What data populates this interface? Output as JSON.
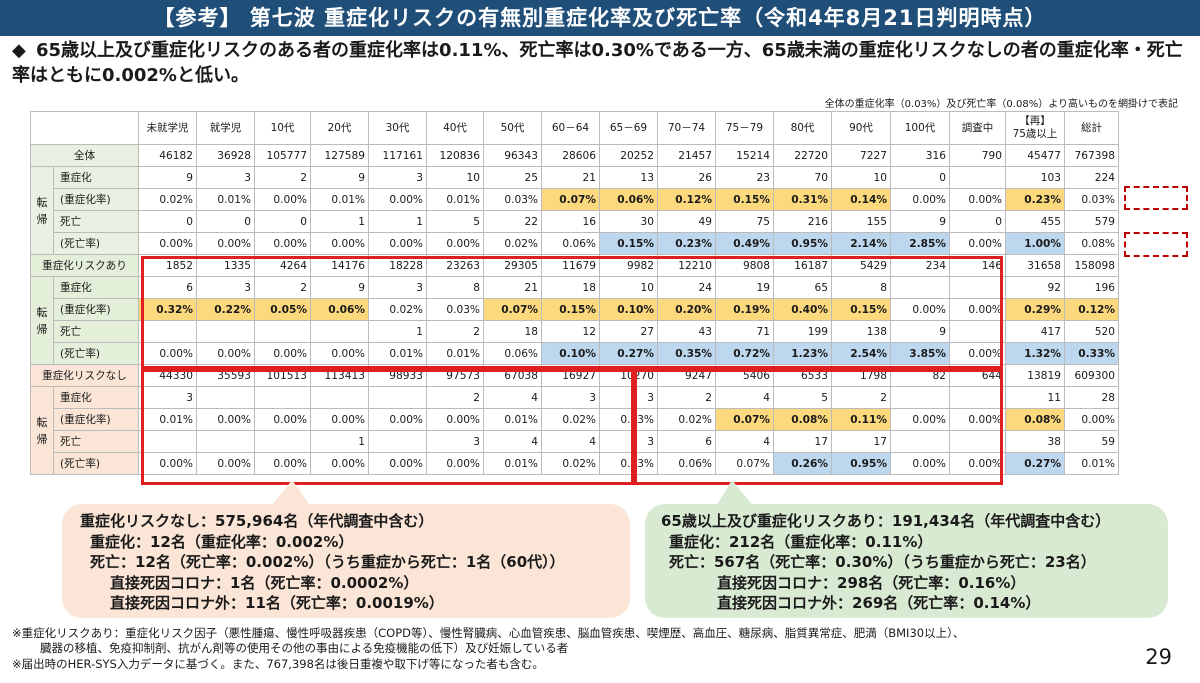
{
  "title": "【参考】 第七波 重症化リスクの有無別重症化率及び死亡率（令和4年8月21日判明時点）",
  "bullet_mark": "◆",
  "bullet": "65歳以上及び重症化リスクのある者の重症化率は0.11%、死亡率は0.30%である一方、65歳未満の重症化リスクなしの者の重症化率・死亡率はともに0.002%と低い。",
  "table_note": "全体の重症化率（0.03%）及び死亡率（0.08%）より高いものを網掛けで表記",
  "headers": [
    "未就学児",
    "就学児",
    "10代",
    "20代",
    "30代",
    "40代",
    "50代",
    "60－64",
    "65－69",
    "70－74",
    "75－79",
    "80代",
    "90代",
    "100代",
    "調査中",
    "【再】\n75歳以上",
    "総計"
  ],
  "groups": [
    {
      "label": "全体",
      "kan": "転帰",
      "tone": "gA",
      "total": [
        "46182",
        "36928",
        "105777",
        "127589",
        "117161",
        "120836",
        "96343",
        "28606",
        "20252",
        "21457",
        "15214",
        "22720",
        "7227",
        "316",
        "790",
        "45477",
        "767398"
      ],
      "rows": [
        {
          "label": "重症化",
          "values": [
            "9",
            "3",
            "2",
            "9",
            "3",
            "10",
            "25",
            "21",
            "13",
            "26",
            "23",
            "70",
            "10",
            "0",
            "",
            "103",
            "224"
          ]
        },
        {
          "label": "(重症化率)",
          "values": [
            "0.02%",
            "0.01%",
            "0.00%",
            "0.01%",
            "0.00%",
            "0.01%",
            "0.03%",
            "0.07%",
            "0.06%",
            "0.12%",
            "0.15%",
            "0.31%",
            "0.14%",
            "0.00%",
            "0.00%",
            "0.23%",
            "0.03%"
          ],
          "hl": [
            "",
            "",
            "",
            "",
            "",
            "",
            "",
            "y",
            "y",
            "y",
            "y",
            "y",
            "y",
            "",
            "",
            "y",
            ""
          ]
        },
        {
          "label": "死亡",
          "values": [
            "0",
            "0",
            "0",
            "1",
            "1",
            "5",
            "22",
            "16",
            "30",
            "49",
            "75",
            "216",
            "155",
            "9",
            "0",
            "455",
            "579"
          ]
        },
        {
          "label": "(死亡率)",
          "values": [
            "0.00%",
            "0.00%",
            "0.00%",
            "0.00%",
            "0.00%",
            "0.00%",
            "0.02%",
            "0.06%",
            "0.15%",
            "0.23%",
            "0.49%",
            "0.95%",
            "2.14%",
            "2.85%",
            "0.00%",
            "1.00%",
            "0.08%"
          ],
          "hl": [
            "",
            "",
            "",
            "",
            "",
            "",
            "",
            "",
            "b",
            "b",
            "b",
            "b",
            "b",
            "b",
            "",
            "b",
            ""
          ]
        }
      ]
    },
    {
      "label": "重症化リスクあり",
      "kan": "転帰",
      "tone": "gB",
      "total": [
        "1852",
        "1335",
        "4264",
        "14176",
        "18228",
        "23263",
        "29305",
        "11679",
        "9982",
        "12210",
        "9808",
        "16187",
        "5429",
        "234",
        "146",
        "31658",
        "158098"
      ],
      "rows": [
        {
          "label": "重症化",
          "values": [
            "6",
            "3",
            "2",
            "9",
            "3",
            "8",
            "21",
            "18",
            "10",
            "24",
            "19",
            "65",
            "8",
            "",
            "",
            "92",
            "196"
          ]
        },
        {
          "label": "(重症化率)",
          "values": [
            "0.32%",
            "0.22%",
            "0.05%",
            "0.06%",
            "0.02%",
            "0.03%",
            "0.07%",
            "0.15%",
            "0.10%",
            "0.20%",
            "0.19%",
            "0.40%",
            "0.15%",
            "0.00%",
            "0.00%",
            "0.29%",
            "0.12%"
          ],
          "hl": [
            "y",
            "y",
            "y",
            "y",
            "",
            "",
            "y",
            "y",
            "y",
            "y",
            "y",
            "y",
            "y",
            "",
            "",
            "y",
            "y"
          ]
        },
        {
          "label": "死亡",
          "values": [
            "",
            "",
            "",
            "",
            "1",
            "2",
            "18",
            "12",
            "27",
            "43",
            "71",
            "199",
            "138",
            "9",
            "",
            "417",
            "520"
          ]
        },
        {
          "label": "(死亡率)",
          "values": [
            "0.00%",
            "0.00%",
            "0.00%",
            "0.00%",
            "0.01%",
            "0.01%",
            "0.06%",
            "0.10%",
            "0.27%",
            "0.35%",
            "0.72%",
            "1.23%",
            "2.54%",
            "3.85%",
            "0.00%",
            "1.32%",
            "0.33%"
          ],
          "hl": [
            "",
            "",
            "",
            "",
            "",
            "",
            "",
            "b",
            "b",
            "b",
            "b",
            "b",
            "b",
            "b",
            "",
            "b",
            "b"
          ]
        }
      ]
    },
    {
      "label": "重症化リスクなし",
      "kan": "転帰",
      "tone": "gC",
      "total": [
        "44330",
        "35593",
        "101513",
        "113413",
        "98933",
        "97573",
        "67038",
        "16927",
        "10270",
        "9247",
        "5406",
        "6533",
        "1798",
        "82",
        "644",
        "13819",
        "609300"
      ],
      "rows": [
        {
          "label": "重症化",
          "values": [
            "3",
            "",
            "",
            "",
            "",
            "2",
            "4",
            "3",
            "3",
            "2",
            "4",
            "5",
            "2",
            "",
            "",
            "11",
            "28"
          ]
        },
        {
          "label": "(重症化率)",
          "values": [
            "0.01%",
            "0.00%",
            "0.00%",
            "0.00%",
            "0.00%",
            "0.00%",
            "0.01%",
            "0.02%",
            "0.03%",
            "0.02%",
            "0.07%",
            "0.08%",
            "0.11%",
            "0.00%",
            "0.00%",
            "0.08%",
            "0.00%"
          ],
          "hl": [
            "",
            "",
            "",
            "",
            "",
            "",
            "",
            "",
            "",
            "",
            "y",
            "y",
            "y",
            "",
            "",
            "y",
            ""
          ]
        },
        {
          "label": "死亡",
          "values": [
            "",
            "",
            "",
            "1",
            "",
            "3",
            "4",
            "4",
            "3",
            "6",
            "4",
            "17",
            "17",
            "",
            "",
            "38",
            "59"
          ]
        },
        {
          "label": "(死亡率)",
          "values": [
            "0.00%",
            "0.00%",
            "0.00%",
            "0.00%",
            "0.00%",
            "0.00%",
            "0.01%",
            "0.02%",
            "0.03%",
            "0.06%",
            "0.07%",
            "0.26%",
            "0.95%",
            "0.00%",
            "0.00%",
            "0.27%",
            "0.01%"
          ],
          "hl": [
            "",
            "",
            "",
            "",
            "",
            "",
            "",
            "",
            "",
            "",
            "",
            "b",
            "b",
            "",
            "",
            "b",
            ""
          ]
        }
      ]
    }
  ],
  "box_left": [
    "重症化リスクなし：575,964名（年代調査中含む）",
    "重症化：12名（重症化率：0.002%）",
    "死亡：12名（死亡率：0.002%）（うち重症から死亡：1名（60代））",
    "直接死因コロナ：1名（死亡率：0.0002%）",
    "直接死因コロナ外：11名（死亡率：0.0019%）"
  ],
  "box_right": [
    "65歳以上及び重症化リスクあり：191,434名（年代調査中含む）",
    "重症化：212名（重症化率：0.11%）",
    "死亡：567名（死亡率：0.30%）（うち重症から死亡：23名）",
    "直接死因コロナ：298名（死亡率：0.16%）",
    "直接死因コロナ外：269名（死亡率：0.14%）"
  ],
  "footnotes": [
    "※重症化リスクあり：重症化リスク因子（悪性腫瘍、慢性呼吸器疾患（COPD等）、慢性腎臓病、心血管疾患、脳血管疾患、喫煙歴、高血圧、糖尿病、脂質異常症、肥満（BMI30以上）、",
    "臓器の移植、免疫抑制剤、抗がん剤等の使用その他の事由による免疫機能の低下）及び妊娠している者",
    "※届出時のHER-SYS入力データに基づく。また、767,398名は後日重複や取下げ等になった者も含む。"
  ],
  "page_number": "29",
  "colors": {
    "title_bg": "#1f4e79",
    "highlight_severe": "#fdd97e",
    "highlight_death": "#bdd7ee",
    "frame": "#e02020"
  }
}
